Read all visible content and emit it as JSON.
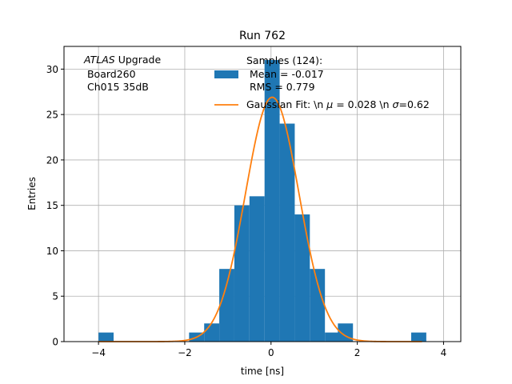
{
  "chart_data": {
    "type": "bar",
    "title": "Run 762",
    "xlabel": "time [ns]",
    "ylabel": "Entries",
    "xlim": [
      -4.8,
      4.4
    ],
    "ylim": [
      0,
      32.5
    ],
    "xticks": [
      -4,
      -2,
      0,
      2,
      4
    ],
    "yticks": [
      0,
      5,
      10,
      15,
      20,
      25,
      30
    ],
    "grid": true,
    "legend_position": "top-center",
    "annotation": {
      "italic": "ATLAS",
      "rest": " Upgrade",
      "line2": " Board260",
      "line3": " Ch015 35dB"
    },
    "histogram": {
      "name_lines": [
        "Samples (124):",
        " Mean = -0.017",
        " RMS = 0.779"
      ],
      "color": "#1f77b4",
      "bin_width": 0.35,
      "bins": [
        {
          "x0": -4.0,
          "count": 1
        },
        {
          "x0": -1.9,
          "count": 1
        },
        {
          "x0": -1.55,
          "count": 2
        },
        {
          "x0": -1.2,
          "count": 8
        },
        {
          "x0": -0.85,
          "count": 15
        },
        {
          "x0": -0.5,
          "count": 16
        },
        {
          "x0": -0.15,
          "count": 31
        },
        {
          "x0": 0.2,
          "count": 24
        },
        {
          "x0": 0.55,
          "count": 14
        },
        {
          "x0": 0.9,
          "count": 8
        },
        {
          "x0": 1.25,
          "count": 1
        },
        {
          "x0": 1.55,
          "count": 2
        },
        {
          "x0": 3.25,
          "count": 1
        }
      ]
    },
    "fit": {
      "name": "Gaussian Fit: \\n $\\mu$ = 0.028 \\n $\\sigma$=0.62",
      "legend_prefix": "Gaussian Fit: \\n ",
      "mu_symbol": "μ",
      "mu_text": " = 0.028 \\n ",
      "sigma_symbol": "σ",
      "sigma_text": "=0.62",
      "color": "#ff7f0e",
      "amplitude": 26.9,
      "mu": 0.028,
      "sigma": 0.62,
      "x_range": [
        -4.0,
        3.5
      ]
    }
  }
}
